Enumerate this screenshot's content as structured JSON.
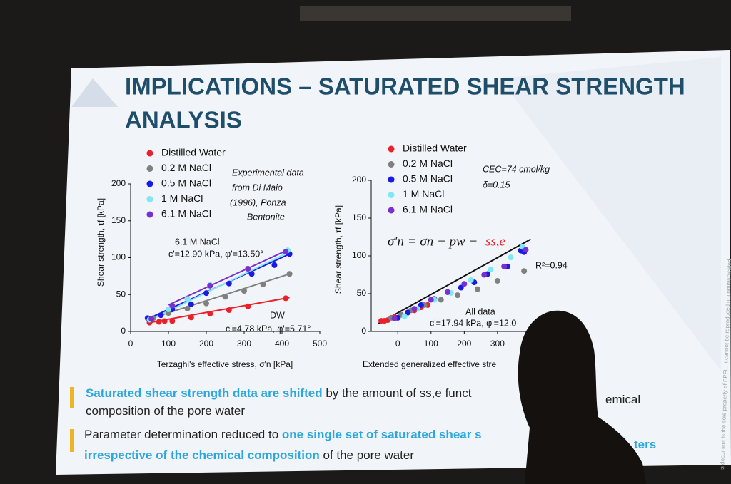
{
  "slide": {
    "title": [
      "IMPLICATIONS – SATURATED SHEAR STRENGTH",
      "ANALYSIS"
    ],
    "bullets": [
      {
        "lines": [
          [
            {
              "text": "Saturated shear strength data are shifted",
              "bold": true
            },
            {
              "text": " by the amount of ss,e  funct",
              "bold": false
            }
          ],
          [
            {
              "text": "emical",
              "bold": false
            }
          ],
          [
            {
              "text": "composition of the pore water",
              "bold": false
            }
          ]
        ]
      },
      {
        "lines": [
          [
            {
              "text": "Parameter determination reduced to ",
              "bold": false
            },
            {
              "text": "one single set of saturated shear s",
              "bold": true
            }
          ],
          [
            {
              "text": "ters",
              "bold": true
            }
          ],
          [
            {
              "text": "irrespective of the chemical composition",
              "bold": true
            },
            {
              "text": " of the pore water",
              "bold": false
            }
          ]
        ]
      }
    ],
    "side_note": "is document is the sole property of EPFL. It cannot be reproduced or communicated"
  },
  "chart_data": [
    {
      "type": "scatter",
      "x_label": "Terzaghi's effective stress, σ'n [kPa]",
      "y_label": "Shear strength, τf [kPa]",
      "xlim": [
        0,
        500
      ],
      "xticks": [
        0,
        100,
        200,
        300,
        400,
        500
      ],
      "ylim": [
        0,
        200
      ],
      "yticks": [
        0,
        50,
        100,
        150,
        200
      ],
      "annotations": [
        "Experimental data",
        "from Di Maio",
        "(1996), Ponza",
        "Bentonite",
        "6.1 M NaCl",
        "c'=12.90 kPa, φ'=13.50°",
        "DW",
        "c'=4.78 kPa, φ'=5.71°"
      ],
      "series": [
        {
          "name": "Distilled Water",
          "color": "#e8222a",
          "x": [
            50,
            75,
            90,
            110,
            160,
            210,
            260,
            310,
            410
          ],
          "values": [
            12,
            13,
            14,
            14,
            19,
            24,
            29,
            34,
            45
          ],
          "fit_x": [
            50,
            420
          ],
          "fit_values": [
            12,
            46
          ]
        },
        {
          "name": "0.2 M NaCl",
          "color": "#808080",
          "x": [
            60,
            100,
            150,
            200,
            250,
            300,
            350,
            420
          ],
          "values": [
            18,
            25,
            31,
            38,
            47,
            55,
            64,
            78
          ],
          "fit_x": [
            50,
            420
          ],
          "fit_values": [
            17,
            78
          ]
        },
        {
          "name": "0.5 M NaCl",
          "color": "#1a1ae6",
          "x": [
            45,
            80,
            110,
            160,
            200,
            260,
            320,
            380,
            420
          ],
          "values": [
            18,
            22,
            30,
            37,
            52,
            65,
            78,
            90,
            105
          ],
          "fit_x": [
            45,
            420
          ],
          "fit_values": [
            17,
            105
          ]
        },
        {
          "name": "1 M NaCl",
          "color": "#7fe8f0",
          "x": [
            50,
            100,
            150,
            210,
            310,
            415
          ],
          "values": [
            16,
            30,
            44,
            63,
            85,
            110
          ],
          "fit_x": [
            50,
            420
          ],
          "fit_values": [
            15,
            108
          ]
        },
        {
          "name": "6.1 M NaCl",
          "color": "#7a2fd0",
          "x": [
            55,
            110,
            210,
            310,
            410
          ],
          "values": [
            17,
            35,
            62,
            85,
            108
          ],
          "fit_x": [
            100,
            405
          ],
          "fit_values": [
            36,
            108
          ]
        }
      ]
    },
    {
      "type": "scatter",
      "x_label": "Extended generalized effective stre",
      "y_label": "Shear strength, τf [kPa]",
      "xlim": [
        -80,
        500
      ],
      "xticks": [
        0,
        100,
        200,
        300
      ],
      "ylim": [
        0,
        200
      ],
      "yticks": [
        0,
        50,
        100,
        150,
        200
      ],
      "equation": [
        "σ′n = σn − pw −",
        "ss,e"
      ],
      "annotations": [
        "CEC=74 cmol/kg",
        "δ=0.15",
        "R²=0.94",
        "All data",
        "c'=17.94 kPa, φ'=12.0"
      ],
      "fit": {
        "x": [
          -60,
          400
        ],
        "values": [
          10,
          122
        ]
      },
      "series": [
        {
          "name": "Distilled Water",
          "color": "#e8222a",
          "x": [
            -50,
            -40,
            -30,
            -10,
            10,
            30,
            50,
            70,
            90
          ],
          "values": [
            14,
            14,
            15,
            19,
            22,
            25,
            28,
            32,
            35
          ]
        },
        {
          "name": "0.2 M NaCl",
          "color": "#808080",
          "x": [
            -20,
            10,
            40,
            80,
            130,
            180,
            240,
            300,
            380
          ],
          "values": [
            18,
            22,
            28,
            35,
            42,
            48,
            56,
            67,
            80
          ]
        },
        {
          "name": "0.5 M NaCl",
          "color": "#1a1ae6",
          "x": [
            0,
            30,
            70,
            110,
            150,
            190,
            230,
            270,
            330,
            370,
            380
          ],
          "values": [
            18,
            25,
            35,
            43,
            52,
            58,
            65,
            76,
            86,
            107,
            105
          ]
        },
        {
          "name": "1 M NaCl",
          "color": "#7fe8f0",
          "x": [
            20,
            60,
            110,
            160,
            220,
            280,
            340,
            375
          ],
          "values": [
            20,
            30,
            42,
            51,
            68,
            82,
            98,
            112
          ]
        },
        {
          "name": "6.1 M NaCl",
          "color": "#7a2fd0",
          "x": [
            -10,
            50,
            100,
            150,
            200,
            260,
            320,
            385
          ],
          "values": [
            17,
            30,
            42,
            52,
            63,
            75,
            86,
            108
          ]
        }
      ]
    }
  ]
}
